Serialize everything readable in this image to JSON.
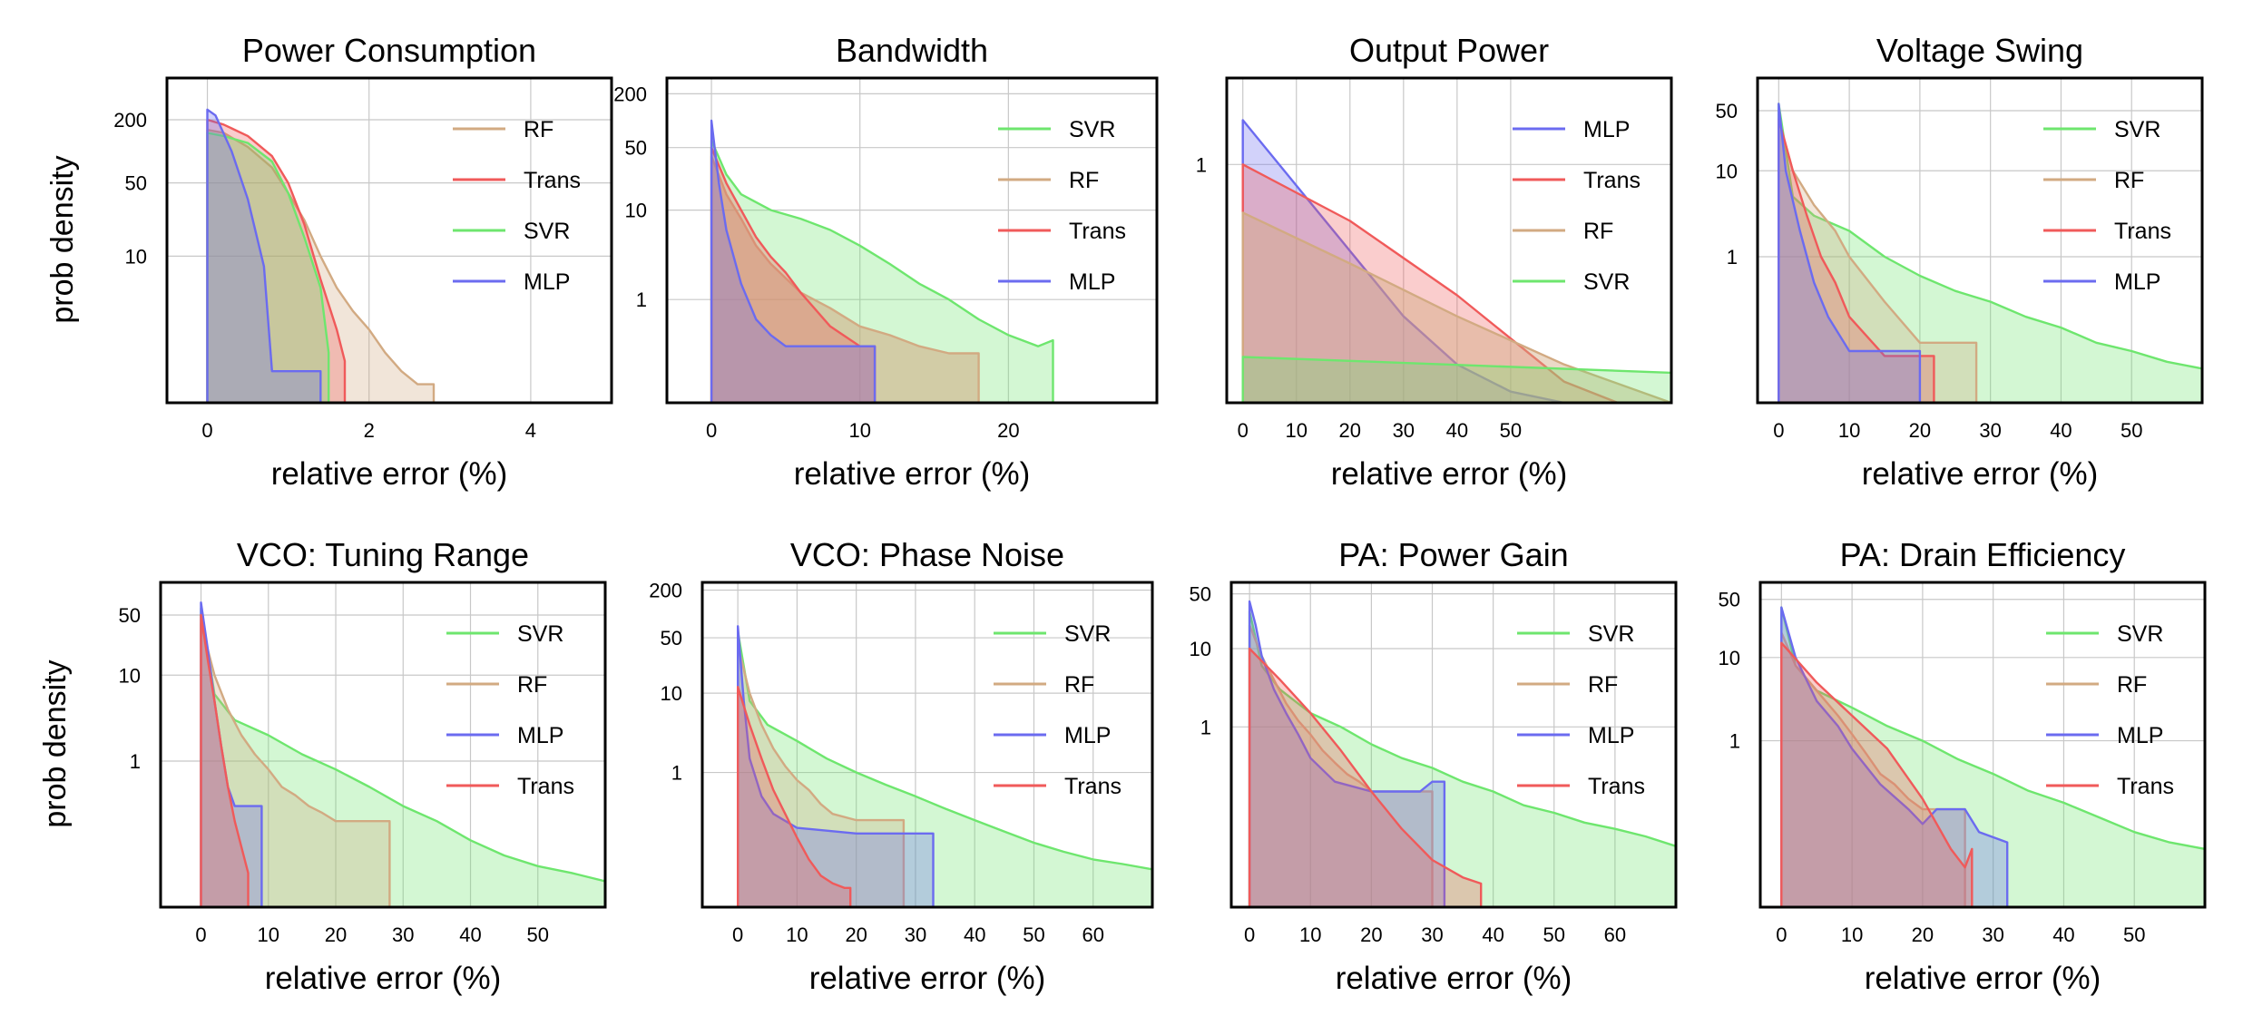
{
  "figure": {
    "ylabel_rows": [
      "prob density",
      "prob density"
    ]
  },
  "colors": {
    "MLP": "#6b6bf0",
    "Trans": "#f05a5a",
    "RF": "#d2aa82",
    "SVR": "#6ee66e"
  },
  "chart_data": [
    {
      "type": "area",
      "title": "Power Consumption",
      "xlabel": "relative error (%)",
      "ylabel": "prob density",
      "xlim": [
        -0.5,
        5
      ],
      "xticks": [
        0,
        2,
        4
      ],
      "yscale": "log",
      "ylim": [
        0.4,
        500
      ],
      "yticks": [
        200,
        50,
        10
      ],
      "legend": [
        "RF",
        "Trans",
        "SVR",
        "MLP"
      ],
      "series": [
        {
          "name": "RF",
          "fill_opacity": 0.3,
          "x": [
            0,
            0.2,
            0.5,
            0.8,
            1.0,
            1.2,
            1.4,
            1.6,
            1.8,
            2.0,
            2.2,
            2.4,
            2.6,
            2.8,
            2.8
          ],
          "y": [
            160,
            150,
            110,
            70,
            40,
            22,
            10,
            5,
            3,
            2,
            1.2,
            0.8,
            0.6,
            0.6,
            0.4
          ]
        },
        {
          "name": "Trans",
          "fill_opacity": 0.3,
          "x": [
            0,
            0.2,
            0.5,
            0.8,
            1.0,
            1.2,
            1.4,
            1.6,
            1.7,
            1.7
          ],
          "y": [
            200,
            180,
            140,
            90,
            50,
            20,
            6,
            2,
            1,
            0.4
          ]
        },
        {
          "name": "SVR",
          "fill_opacity": 0.3,
          "x": [
            0,
            0.2,
            0.5,
            0.8,
            1.0,
            1.2,
            1.4,
            1.5,
            1.5
          ],
          "y": [
            150,
            140,
            120,
            80,
            40,
            15,
            5,
            1.2,
            0.4
          ]
        },
        {
          "name": "MLP",
          "fill_opacity": 0.3,
          "x": [
            0,
            0.1,
            0.3,
            0.5,
            0.7,
            0.8,
            1.4,
            1.4
          ],
          "y": [
            250,
            220,
            100,
            35,
            8,
            0.8,
            0.8,
            0.4
          ]
        }
      ]
    },
    {
      "type": "area",
      "title": "Bandwidth",
      "xlabel": "relative error (%)",
      "ylabel": "",
      "xlim": [
        -3,
        30
      ],
      "xticks": [
        0,
        10,
        20
      ],
      "yscale": "log",
      "ylim": [
        0.07,
        300
      ],
      "yticks": [
        200,
        50,
        10,
        1
      ],
      "legend": [
        "SVR",
        "RF",
        "Trans",
        "MLP"
      ],
      "series": [
        {
          "name": "SVR",
          "fill_opacity": 0.3,
          "x": [
            0,
            1,
            2,
            4,
            6,
            8,
            10,
            12,
            14,
            16,
            18,
            20,
            22,
            23,
            23
          ],
          "y": [
            60,
            25,
            15,
            10,
            8,
            6,
            4,
            2.5,
            1.5,
            1,
            0.6,
            0.4,
            0.3,
            0.35,
            0.07
          ]
        },
        {
          "name": "RF",
          "fill_opacity": 0.55,
          "x": [
            0,
            1,
            2,
            3,
            4,
            6,
            8,
            10,
            12,
            14,
            16,
            18,
            18
          ],
          "y": [
            40,
            15,
            8,
            4,
            2.5,
            1.2,
            0.8,
            0.5,
            0.4,
            0.3,
            0.25,
            0.25,
            0.07
          ]
        },
        {
          "name": "Trans",
          "fill_opacity": 0.3,
          "x": [
            0,
            1,
            2,
            3,
            4,
            5,
            6,
            8,
            10,
            11,
            11
          ],
          "y": [
            50,
            20,
            10,
            5,
            3,
            2,
            1.2,
            0.5,
            0.3,
            0.3,
            0.07
          ]
        },
        {
          "name": "MLP",
          "fill_opacity": 0.3,
          "x": [
            0,
            0.5,
            1,
            2,
            3,
            4,
            5,
            11,
            11
          ],
          "y": [
            100,
            20,
            6,
            1.5,
            0.6,
            0.4,
            0.3,
            0.3,
            0.07
          ]
        }
      ]
    },
    {
      "type": "area",
      "title": "Output Power",
      "xlabel": "relative error (%)",
      "ylabel": "",
      "xlim": [
        -3,
        80
      ],
      "xticks": [
        0,
        10,
        20,
        30,
        40,
        50
      ],
      "yscale": "log",
      "ylim": [
        0.08,
        2.5
      ],
      "yticks": [
        1
      ],
      "legend": [
        "MLP",
        "Trans",
        "RF",
        "SVR"
      ],
      "series": [
        {
          "name": "MLP",
          "fill_opacity": 0.3,
          "x": [
            0,
            10,
            20,
            30,
            40,
            50,
            60
          ],
          "y": [
            1.6,
            0.8,
            0.4,
            0.2,
            0.12,
            0.09,
            0.08
          ]
        },
        {
          "name": "Trans",
          "fill_opacity": 0.3,
          "x": [
            0,
            20,
            40,
            60,
            70
          ],
          "y": [
            1.0,
            0.55,
            0.25,
            0.1,
            0.08
          ]
        },
        {
          "name": "RF",
          "fill_opacity": 0.45,
          "x": [
            0,
            20,
            40,
            60,
            80
          ],
          "y": [
            0.6,
            0.35,
            0.2,
            0.12,
            0.08
          ]
        },
        {
          "name": "SVR",
          "fill_opacity": 0.3,
          "x": [
            0,
            80
          ],
          "y": [
            0.13,
            0.11
          ]
        }
      ]
    },
    {
      "type": "area",
      "title": "Voltage Swing",
      "xlabel": "relative error (%)",
      "ylabel": "",
      "xlim": [
        -3,
        60
      ],
      "xticks": [
        0,
        10,
        20,
        30,
        40,
        50
      ],
      "yscale": "log",
      "ylim": [
        0.02,
        120
      ],
      "yticks": [
        50,
        10,
        1
      ],
      "legend": [
        "SVR",
        "RF",
        "Trans",
        "MLP"
      ],
      "series": [
        {
          "name": "SVR",
          "fill_opacity": 0.3,
          "x": [
            0,
            2,
            5,
            10,
            15,
            20,
            25,
            30,
            35,
            40,
            45,
            50,
            55,
            60
          ],
          "y": [
            60,
            5,
            3,
            2,
            1,
            0.6,
            0.4,
            0.3,
            0.2,
            0.15,
            0.1,
            0.08,
            0.06,
            0.05
          ]
        },
        {
          "name": "RF",
          "fill_opacity": 0.3,
          "x": [
            0,
            2,
            5,
            8,
            10,
            15,
            20,
            28,
            28
          ],
          "y": [
            40,
            10,
            4,
            2,
            1,
            0.3,
            0.1,
            0.1,
            0.02
          ]
        },
        {
          "name": "Trans",
          "fill_opacity": 0.3,
          "x": [
            0,
            2,
            4,
            6,
            8,
            10,
            15,
            22,
            22
          ],
          "y": [
            40,
            10,
            3,
            1,
            0.5,
            0.2,
            0.07,
            0.07,
            0.02
          ]
        },
        {
          "name": "MLP",
          "fill_opacity": 0.3,
          "x": [
            0,
            1,
            3,
            5,
            7,
            10,
            20,
            20
          ],
          "y": [
            60,
            10,
            2,
            0.5,
            0.2,
            0.08,
            0.08,
            0.02
          ]
        }
      ]
    },
    {
      "type": "area",
      "title": "VCO: Tuning Range",
      "xlabel": "relative error (%)",
      "ylabel": "prob density",
      "xlim": [
        -6,
        60
      ],
      "xticks": [
        0,
        10,
        20,
        30,
        40,
        50
      ],
      "yscale": "log",
      "ylim": [
        0.02,
        120
      ],
      "yticks": [
        50,
        10,
        1
      ],
      "legend": [
        "SVR",
        "RF",
        "MLP",
        "Trans"
      ],
      "series": [
        {
          "name": "SVR",
          "fill_opacity": 0.3,
          "x": [
            0,
            2,
            5,
            10,
            15,
            20,
            25,
            30,
            35,
            40,
            45,
            50,
            55,
            60
          ],
          "y": [
            60,
            6,
            3,
            2,
            1.2,
            0.8,
            0.5,
            0.3,
            0.2,
            0.12,
            0.08,
            0.06,
            0.05,
            0.04
          ]
        },
        {
          "name": "RF",
          "fill_opacity": 0.3,
          "x": [
            0,
            2,
            4,
            6,
            8,
            10,
            12,
            14,
            16,
            18,
            20,
            28,
            28
          ],
          "y": [
            40,
            10,
            4,
            2,
            1.2,
            0.8,
            0.5,
            0.4,
            0.3,
            0.25,
            0.2,
            0.2,
            0.02
          ]
        },
        {
          "name": "MLP",
          "fill_opacity": 0.3,
          "x": [
            0,
            1,
            2,
            3,
            4,
            5,
            9,
            9
          ],
          "y": [
            70,
            20,
            5,
            1.5,
            0.5,
            0.3,
            0.3,
            0.02
          ]
        },
        {
          "name": "Trans",
          "fill_opacity": 0.3,
          "x": [
            0,
            1,
            2,
            3,
            4,
            5,
            6,
            7,
            7
          ],
          "y": [
            50,
            15,
            5,
            1.5,
            0.5,
            0.2,
            0.1,
            0.05,
            0.02
          ]
        }
      ]
    },
    {
      "type": "area",
      "title": "VCO: Phase Noise",
      "xlabel": "relative error (%)",
      "ylabel": "",
      "xlim": [
        -6,
        70
      ],
      "xticks": [
        0,
        10,
        20,
        30,
        40,
        50,
        60
      ],
      "yscale": "log",
      "ylim": [
        0.02,
        250
      ],
      "yticks": [
        200,
        50,
        10,
        1
      ],
      "legend": [
        "SVR",
        "RF",
        "MLP",
        "Trans"
      ],
      "series": [
        {
          "name": "SVR",
          "fill_opacity": 0.3,
          "x": [
            0,
            2,
            5,
            10,
            15,
            20,
            25,
            30,
            35,
            40,
            45,
            50,
            55,
            60,
            65,
            70
          ],
          "y": [
            60,
            8,
            4,
            2.5,
            1.5,
            1,
            0.7,
            0.5,
            0.35,
            0.25,
            0.18,
            0.13,
            0.1,
            0.08,
            0.07,
            0.06
          ]
        },
        {
          "name": "RF",
          "fill_opacity": 0.3,
          "x": [
            0,
            2,
            4,
            6,
            8,
            10,
            12,
            14,
            16,
            20,
            28,
            28
          ],
          "y": [
            40,
            10,
            4,
            2,
            1.2,
            0.8,
            0.6,
            0.4,
            0.3,
            0.25,
            0.25,
            0.02
          ]
        },
        {
          "name": "MLP",
          "fill_opacity": 0.3,
          "x": [
            0,
            1,
            2,
            4,
            6,
            10,
            20,
            33,
            33
          ],
          "y": [
            70,
            8,
            1.5,
            0.5,
            0.3,
            0.2,
            0.17,
            0.17,
            0.02
          ]
        },
        {
          "name": "Trans",
          "fill_opacity": 0.3,
          "x": [
            0,
            2,
            4,
            6,
            8,
            10,
            12,
            14,
            16,
            18,
            19,
            19
          ],
          "y": [
            12,
            4,
            1.5,
            0.6,
            0.3,
            0.15,
            0.08,
            0.05,
            0.04,
            0.035,
            0.035,
            0.02
          ]
        }
      ]
    },
    {
      "type": "area",
      "title": "PA: Power Gain",
      "xlabel": "relative error (%)",
      "ylabel": "",
      "xlim": [
        -3,
        70
      ],
      "xticks": [
        0,
        10,
        20,
        30,
        40,
        50,
        60
      ],
      "yscale": "log",
      "ylim": [
        0.005,
        70
      ],
      "yticks": [
        50,
        10,
        1
      ],
      "legend": [
        "SVR",
        "RF",
        "MLP",
        "Trans"
      ],
      "series": [
        {
          "name": "SVR",
          "fill_opacity": 0.3,
          "x": [
            0,
            2,
            5,
            10,
            15,
            20,
            25,
            30,
            35,
            40,
            45,
            50,
            55,
            60,
            65,
            70
          ],
          "y": [
            30,
            6,
            3,
            1.5,
            1,
            0.6,
            0.4,
            0.3,
            0.2,
            0.15,
            0.1,
            0.08,
            0.06,
            0.05,
            0.04,
            0.03
          ]
        },
        {
          "name": "RF",
          "fill_opacity": 0.3,
          "x": [
            0,
            2,
            4,
            6,
            8,
            10,
            12,
            14,
            16,
            18,
            20,
            30,
            30
          ],
          "y": [
            20,
            8,
            4,
            2,
            1.2,
            0.8,
            0.5,
            0.35,
            0.25,
            0.2,
            0.15,
            0.15,
            0.005
          ]
        },
        {
          "name": "MLP",
          "fill_opacity": 0.3,
          "x": [
            0,
            1,
            2,
            4,
            6,
            8,
            10,
            14,
            20,
            28,
            30,
            32,
            32
          ],
          "y": [
            40,
            20,
            8,
            3,
            1.5,
            0.8,
            0.4,
            0.2,
            0.15,
            0.15,
            0.2,
            0.2,
            0.005
          ]
        },
        {
          "name": "Trans",
          "fill_opacity": 0.3,
          "x": [
            0,
            5,
            10,
            15,
            20,
            25,
            30,
            35,
            38,
            38
          ],
          "y": [
            10,
            4,
            1.5,
            0.5,
            0.15,
            0.05,
            0.02,
            0.012,
            0.01,
            0.005
          ]
        }
      ]
    },
    {
      "type": "area",
      "title": "PA: Drain Efficiency",
      "xlabel": "relative error (%)",
      "ylabel": "",
      "xlim": [
        -3,
        60
      ],
      "xticks": [
        0,
        10,
        20,
        30,
        40,
        50
      ],
      "yscale": "log",
      "ylim": [
        0.01,
        80
      ],
      "yticks": [
        50,
        10,
        1
      ],
      "legend": [
        "SVR",
        "RF",
        "MLP",
        "Trans"
      ],
      "series": [
        {
          "name": "SVR",
          "fill_opacity": 0.3,
          "x": [
            0,
            2,
            5,
            10,
            15,
            20,
            25,
            30,
            35,
            40,
            45,
            50,
            55,
            60
          ],
          "y": [
            40,
            8,
            4,
            2.5,
            1.5,
            1,
            0.6,
            0.4,
            0.25,
            0.18,
            0.12,
            0.08,
            0.06,
            0.05
          ]
        },
        {
          "name": "RF",
          "fill_opacity": 0.3,
          "x": [
            0,
            2,
            5,
            8,
            10,
            12,
            14,
            16,
            18,
            20,
            26,
            26
          ],
          "y": [
            20,
            8,
            4,
            2,
            1.2,
            0.7,
            0.4,
            0.3,
            0.2,
            0.15,
            0.15,
            0.01
          ]
        },
        {
          "name": "MLP",
          "fill_opacity": 0.3,
          "x": [
            0,
            2,
            5,
            8,
            10,
            14,
            18,
            20,
            22,
            26,
            28,
            32,
            32
          ],
          "y": [
            40,
            10,
            3,
            1.5,
            0.8,
            0.3,
            0.15,
            0.1,
            0.15,
            0.15,
            0.08,
            0.06,
            0.01
          ]
        },
        {
          "name": "Trans",
          "fill_opacity": 0.3,
          "x": [
            0,
            5,
            10,
            15,
            20,
            24,
            26,
            27,
            27
          ],
          "y": [
            15,
            5,
            2,
            0.8,
            0.2,
            0.05,
            0.03,
            0.05,
            0.01
          ]
        }
      ]
    }
  ]
}
